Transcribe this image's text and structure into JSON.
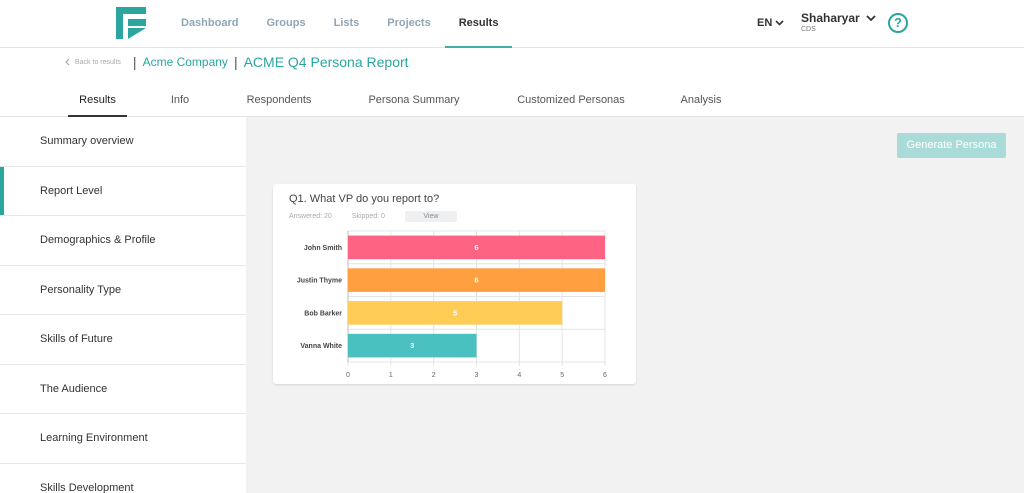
{
  "nav": {
    "links": [
      "Dashboard",
      "Groups",
      "Lists",
      "Projects",
      "Results"
    ],
    "active": "Results",
    "lang": "EN",
    "user_name": "Shaharyar",
    "user_org": "CDS",
    "help_glyph": "?"
  },
  "header": {
    "back_label": "Back to results",
    "sep": "|",
    "company": "Acme Company",
    "report_title": "ACME Q4 Persona Report",
    "tabs": [
      "Results",
      "Info",
      "Respondents",
      "Persona Summary",
      "Customized Personas",
      "Analysis"
    ],
    "active_tab": "Results"
  },
  "sidebar": {
    "items": [
      "Summary overview",
      "Report Level",
      "Demographics & Profile",
      "Personality Type",
      "Skills of Future",
      "The Audience",
      "Learning Environment",
      "Skills Development"
    ],
    "active": "Report Level"
  },
  "main": {
    "generate_label": "Generate Persona",
    "question": "Q1. What VP do you report to?",
    "answered": "Answered: 20",
    "skipped": "Skipped: 0",
    "view_label": "View"
  },
  "colors": {
    "accent": "#2aa69f",
    "bars": [
      "#ff6384",
      "#ff9f40",
      "#ffcd56",
      "#4bc0c0"
    ]
  },
  "chart_data": {
    "type": "bar",
    "orientation": "horizontal",
    "categories": [
      "John Smith",
      "Justin Thyme",
      "Bob Barker",
      "Vanna White"
    ],
    "values": [
      6,
      6,
      5,
      3
    ],
    "xlim": [
      0,
      6
    ],
    "ticks": [
      "0",
      "1",
      "2",
      "3",
      "4",
      "5",
      "6"
    ],
    "grid": true
  }
}
